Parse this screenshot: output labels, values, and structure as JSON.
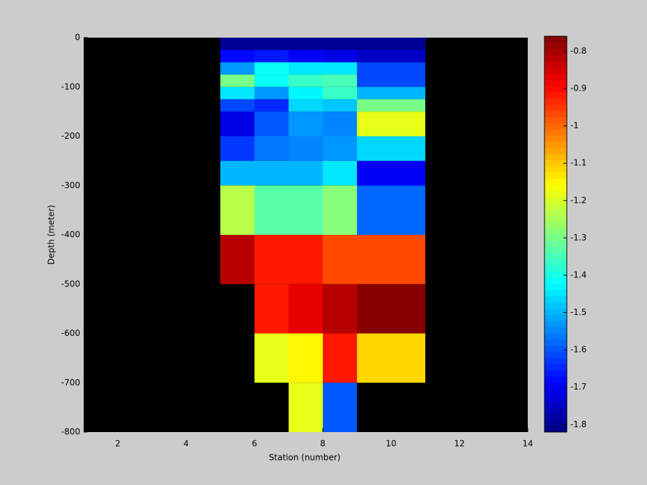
{
  "chart_data": {
    "type": "heatmap",
    "x_label": "Station (number)",
    "y_label": "Depth (meter)",
    "xlim": [
      1,
      14
    ],
    "xticks": [
      2,
      4,
      6,
      8,
      10,
      12,
      14
    ],
    "ylim": [
      -800,
      0
    ],
    "yticks": [
      0,
      -100,
      -200,
      -300,
      -400,
      -500,
      -600,
      -700,
      -800
    ],
    "x_edges": [
      5,
      6,
      7,
      8,
      9,
      11
    ],
    "y_edges": [
      0,
      -25,
      -50,
      -75,
      -100,
      -125,
      -150,
      -200,
      -250,
      -300,
      -400,
      -500,
      -600,
      -700,
      -800
    ],
    "values": [
      [
        -1.8,
        -1.8,
        -1.8,
        -1.8,
        -1.8
      ],
      [
        -1.68,
        -1.66,
        -1.7,
        -1.71,
        -1.74
      ],
      [
        -1.53,
        -1.42,
        -1.44,
        -1.44,
        -1.62
      ],
      [
        -1.3,
        -1.42,
        -1.37,
        -1.34,
        -1.62
      ],
      [
        -1.45,
        -1.53,
        -1.43,
        -1.37,
        -1.49
      ],
      [
        -1.62,
        -1.64,
        -1.47,
        -1.48,
        -1.3
      ],
      [
        -1.72,
        -1.6,
        -1.53,
        -1.54,
        -1.18
      ],
      [
        -1.63,
        -1.57,
        -1.55,
        -1.53,
        -1.47
      ],
      [
        -1.49,
        -1.49,
        -1.49,
        -1.44,
        -1.7
      ],
      [
        -1.24,
        -1.33,
        -1.33,
        -1.29,
        -1.58
      ],
      [
        -0.81,
        -0.92,
        -0.92,
        -0.96,
        -0.96
      ],
      [
        null,
        -0.92,
        -0.87,
        -0.81,
        -0.77
      ],
      [
        null,
        -1.19,
        -1.15,
        -0.92,
        -1.12
      ],
      [
        null,
        null,
        -1.18,
        -1.59,
        null
      ]
    ],
    "colormap": "jet",
    "background": "#000000",
    "clim": [
      -1.82,
      -0.76
    ],
    "cticks": [
      -0.8,
      -0.9,
      -1,
      -1.1,
      -1.2,
      -1.3,
      -1.4,
      -1.5,
      -1.6,
      -1.7,
      -1.8
    ]
  }
}
